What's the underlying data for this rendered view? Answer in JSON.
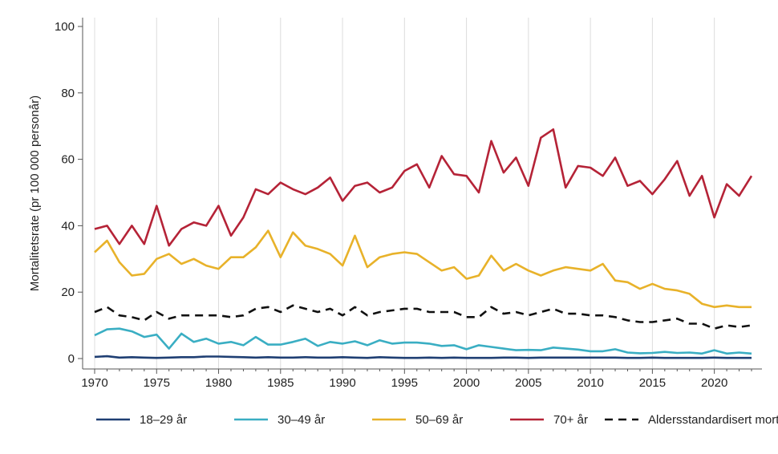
{
  "chart_data": {
    "type": "line",
    "title": "",
    "xlabel": "",
    "ylabel": "Mortalitetsrate (pr 100 000 personår)",
    "xlim": [
      1970,
      2023
    ],
    "ylim": [
      0,
      100
    ],
    "xticks": [
      1970,
      1975,
      1980,
      1985,
      1990,
      1995,
      2000,
      2005,
      2010,
      2015,
      2020
    ],
    "yticks": [
      0,
      20,
      40,
      60,
      80,
      100
    ],
    "grid": "vertical",
    "legend_position": "bottom",
    "x": [
      1970,
      1971,
      1972,
      1973,
      1974,
      1975,
      1976,
      1977,
      1978,
      1979,
      1980,
      1981,
      1982,
      1983,
      1984,
      1985,
      1986,
      1987,
      1988,
      1989,
      1990,
      1991,
      1992,
      1993,
      1994,
      1995,
      1996,
      1997,
      1998,
      1999,
      2000,
      2001,
      2002,
      2003,
      2004,
      2005,
      2006,
      2007,
      2008,
      2009,
      2010,
      2011,
      2012,
      2013,
      2014,
      2015,
      2016,
      2017,
      2018,
      2019,
      2020,
      2021,
      2022,
      2023
    ],
    "series": [
      {
        "name": "18–29 år",
        "color": "#1f3f73",
        "dash": "solid",
        "values": [
          0.5,
          0.7,
          0.3,
          0.4,
          0.3,
          0.2,
          0.3,
          0.4,
          0.4,
          0.6,
          0.6,
          0.5,
          0.4,
          0.3,
          0.4,
          0.3,
          0.3,
          0.4,
          0.3,
          0.3,
          0.4,
          0.3,
          0.2,
          0.4,
          0.3,
          0.2,
          0.2,
          0.3,
          0.2,
          0.3,
          0.2,
          0.2,
          0.2,
          0.3,
          0.3,
          0.2,
          0.3,
          0.3,
          0.3,
          0.3,
          0.3,
          0.3,
          0.3,
          0.2,
          0.2,
          0.3,
          0.2,
          0.2,
          0.2,
          0.2,
          0.3,
          0.2,
          0.2,
          0.2
        ]
      },
      {
        "name": "30–49 år",
        "color": "#3aaec3",
        "dash": "solid",
        "values": [
          7.0,
          8.8,
          9.0,
          8.2,
          6.5,
          7.2,
          3.0,
          7.5,
          5.0,
          6.0,
          4.5,
          5.0,
          4.0,
          6.5,
          4.2,
          4.2,
          5.0,
          6.0,
          3.8,
          5.0,
          4.5,
          5.2,
          4.0,
          5.5,
          4.5,
          4.8,
          4.8,
          4.5,
          3.8,
          4.0,
          2.8,
          4.0,
          3.5,
          3.0,
          2.5,
          2.6,
          2.5,
          3.3,
          3.0,
          2.7,
          2.2,
          2.2,
          2.8,
          1.8,
          1.6,
          1.7,
          2.0,
          1.7,
          1.8,
          1.5,
          2.5,
          1.5,
          1.8,
          1.5
        ]
      },
      {
        "name": "50–69 år",
        "color": "#e8b22a",
        "dash": "solid",
        "values": [
          32.0,
          35.5,
          29.0,
          25.0,
          25.5,
          30.0,
          31.5,
          28.5,
          30.0,
          28.0,
          27.0,
          30.5,
          30.5,
          33.5,
          38.5,
          30.5,
          38.0,
          34.0,
          33.0,
          31.5,
          28.0,
          37.0,
          27.5,
          30.5,
          31.5,
          32.0,
          31.5,
          29.0,
          26.5,
          27.5,
          24.0,
          25.0,
          31.0,
          26.5,
          28.5,
          26.5,
          25.0,
          26.5,
          27.5,
          27.0,
          26.5,
          28.5,
          23.5,
          23.0,
          21.0,
          22.5,
          21.0,
          20.5,
          19.5,
          16.5,
          15.5,
          16.0,
          15.5,
          15.5
        ]
      },
      {
        "name": "70+ år",
        "color": "#b52337",
        "dash": "solid",
        "values": [
          39.0,
          40.0,
          34.5,
          40.0,
          34.5,
          46.0,
          34.0,
          39.0,
          41.0,
          40.0,
          46.0,
          37.0,
          42.5,
          51.0,
          49.5,
          53.0,
          51.0,
          49.5,
          51.5,
          54.5,
          47.5,
          52.0,
          53.0,
          50.0,
          51.5,
          56.5,
          58.5,
          51.5,
          61.0,
          55.5,
          55.0,
          50.0,
          65.5,
          56.0,
          60.5,
          52.0,
          66.5,
          69.0,
          51.5,
          58.0,
          57.5,
          55.0,
          60.5,
          52.0,
          53.5,
          49.5,
          54.0,
          59.5,
          49.0,
          55.0,
          42.5,
          52.5,
          49.0,
          55.0
        ]
      },
      {
        "name": "Aldersstandardisert mortalitetsrate",
        "color": "#111111",
        "dash": "dashed",
        "values": [
          14.0,
          15.5,
          13.0,
          12.5,
          11.5,
          14.0,
          12.0,
          13.0,
          13.0,
          13.0,
          13.0,
          12.5,
          13.0,
          15.0,
          15.5,
          14.0,
          16.0,
          15.0,
          14.0,
          15.0,
          13.0,
          15.5,
          13.0,
          14.0,
          14.5,
          15.0,
          15.0,
          14.0,
          14.0,
          14.0,
          12.5,
          12.5,
          15.5,
          13.5,
          14.0,
          13.0,
          14.0,
          15.0,
          13.5,
          13.5,
          13.0,
          13.0,
          12.5,
          11.5,
          11.0,
          11.0,
          11.5,
          12.0,
          10.5,
          10.5,
          9.0,
          10.0,
          9.5,
          10.0
        ]
      }
    ]
  }
}
